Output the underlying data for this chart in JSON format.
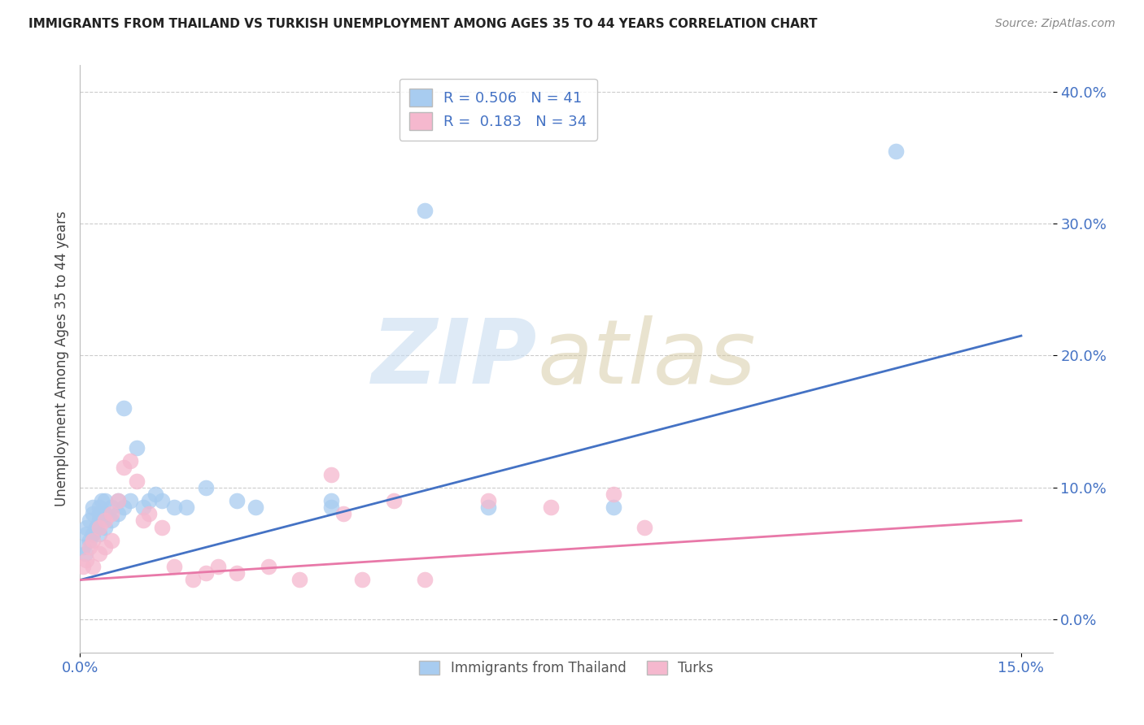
{
  "title": "IMMIGRANTS FROM THAILAND VS TURKISH UNEMPLOYMENT AMONG AGES 35 TO 44 YEARS CORRELATION CHART",
  "source": "Source: ZipAtlas.com",
  "ylabel": "Unemployment Among Ages 35 to 44 years",
  "xlim": [
    0.0,
    0.155
  ],
  "ylim": [
    -0.025,
    0.42
  ],
  "y_ticks": [
    0.0,
    0.1,
    0.2,
    0.3,
    0.4
  ],
  "y_tick_labels": [
    "0.0%",
    "10.0%",
    "20.0%",
    "30.0%",
    "40.0%"
  ],
  "x_ticks": [
    0.0,
    0.15
  ],
  "x_tick_labels": [
    "0.0%",
    "15.0%"
  ],
  "legend_labels": [
    "Immigrants from Thailand",
    "Turks"
  ],
  "legend_R": [
    "0.506",
    "0.183"
  ],
  "legend_N": [
    "41",
    "34"
  ],
  "color_blue": "#A8CCF0",
  "color_pink": "#F5B8CE",
  "line_color_blue": "#4472C4",
  "line_color_pink": "#E878A8",
  "background_color": "#FFFFFF",
  "grid_color": "#CCCCCC",
  "tick_color": "#4472C4",
  "blue_scatter_x": [
    0.0005,
    0.0008,
    0.001,
    0.001,
    0.0015,
    0.0015,
    0.002,
    0.002,
    0.002,
    0.0025,
    0.003,
    0.003,
    0.003,
    0.003,
    0.0035,
    0.004,
    0.004,
    0.004,
    0.005,
    0.005,
    0.006,
    0.006,
    0.007,
    0.007,
    0.008,
    0.009,
    0.01,
    0.011,
    0.012,
    0.013,
    0.015,
    0.017,
    0.02,
    0.025,
    0.028,
    0.04,
    0.04,
    0.055,
    0.065,
    0.085,
    0.13
  ],
  "blue_scatter_y": [
    0.055,
    0.05,
    0.065,
    0.07,
    0.06,
    0.075,
    0.065,
    0.08,
    0.085,
    0.07,
    0.065,
    0.075,
    0.08,
    0.085,
    0.09,
    0.07,
    0.08,
    0.09,
    0.075,
    0.085,
    0.08,
    0.09,
    0.085,
    0.16,
    0.09,
    0.13,
    0.085,
    0.09,
    0.095,
    0.09,
    0.085,
    0.085,
    0.1,
    0.09,
    0.085,
    0.085,
    0.09,
    0.31,
    0.085,
    0.085,
    0.355
  ],
  "pink_scatter_x": [
    0.0005,
    0.001,
    0.0015,
    0.002,
    0.002,
    0.003,
    0.003,
    0.004,
    0.004,
    0.005,
    0.005,
    0.006,
    0.007,
    0.008,
    0.009,
    0.01,
    0.011,
    0.013,
    0.015,
    0.018,
    0.02,
    0.022,
    0.025,
    0.03,
    0.035,
    0.04,
    0.042,
    0.045,
    0.05,
    0.055,
    0.065,
    0.075,
    0.085,
    0.09
  ],
  "pink_scatter_y": [
    0.04,
    0.045,
    0.055,
    0.04,
    0.06,
    0.05,
    0.07,
    0.055,
    0.075,
    0.06,
    0.08,
    0.09,
    0.115,
    0.12,
    0.105,
    0.075,
    0.08,
    0.07,
    0.04,
    0.03,
    0.035,
    0.04,
    0.035,
    0.04,
    0.03,
    0.11,
    0.08,
    0.03,
    0.09,
    0.03,
    0.09,
    0.085,
    0.095,
    0.07
  ],
  "blue_line_x": [
    0.0,
    0.15
  ],
  "blue_line_y": [
    0.03,
    0.215
  ],
  "pink_line_x": [
    0.0,
    0.15
  ],
  "pink_line_y": [
    0.03,
    0.075
  ]
}
